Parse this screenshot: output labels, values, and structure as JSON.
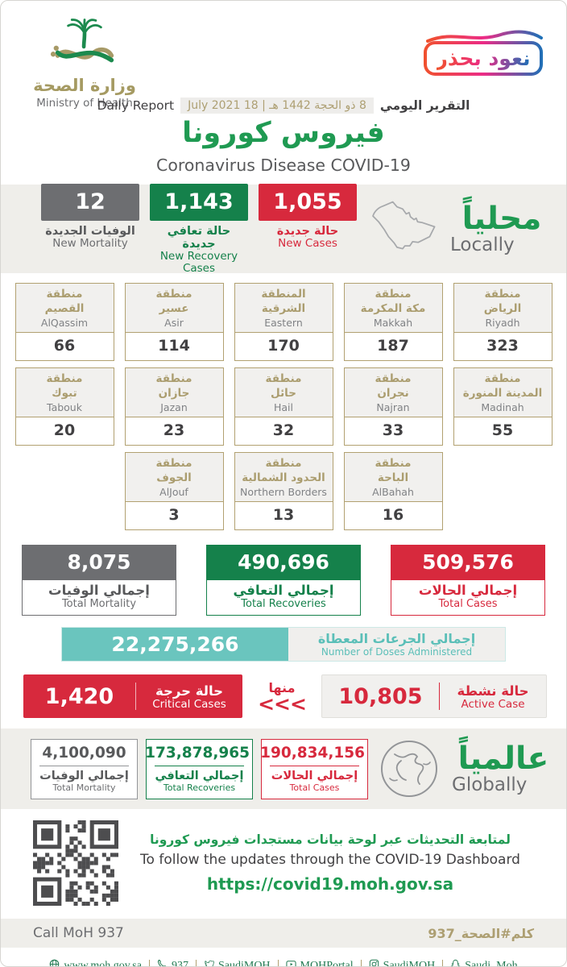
{
  "header": {
    "logo_ar": "وزارة الصحة",
    "logo_en": "Ministry of Health",
    "badge": "نعود بحذر",
    "report_en": "Daily Report",
    "date": "8 ذو الحجة 1442 هـ | 18 July 2021",
    "report_ar": "التقرير اليومي",
    "title_ar": "فيروس كورونا",
    "title_en": "Coronavirus Disease COVID-19"
  },
  "locally": {
    "heading_ar": "محلياً",
    "heading_en": "Locally",
    "stats": [
      {
        "value": "1,055",
        "ar": "حالة جديدة",
        "en": "New Cases",
        "theme": "red"
      },
      {
        "value": "1,143",
        "ar": "حالة تعافي جديدة",
        "en": "New Recovery Cases",
        "theme": "green"
      },
      {
        "value": "12",
        "ar": "الوفيات الجديدة",
        "en": "New Mortality",
        "theme": "gray"
      }
    ]
  },
  "regions": {
    "rows": [
      [
        {
          "ar1": "منطقة",
          "ar2": "الرياض",
          "en": "Riyadh",
          "value": "323"
        },
        {
          "ar1": "منطقة",
          "ar2": "مكة المكرمة",
          "en": "Makkah",
          "value": "187"
        },
        {
          "ar1": "المنطقة",
          "ar2": "الشرقية",
          "en": "Eastern",
          "value": "170"
        },
        {
          "ar1": "منطقة",
          "ar2": "عسير",
          "en": "Asir",
          "value": "114"
        },
        {
          "ar1": "منطقة",
          "ar2": "القصيم",
          "en": "AlQassim",
          "value": "66"
        }
      ],
      [
        {
          "ar1": "منطقة",
          "ar2": "المدينة المنورة",
          "en": "Madinah",
          "value": "55"
        },
        {
          "ar1": "منطقة",
          "ar2": "نجران",
          "en": "Najran",
          "value": "33"
        },
        {
          "ar1": "منطقة",
          "ar2": "حائل",
          "en": "Hail",
          "value": "32"
        },
        {
          "ar1": "منطقة",
          "ar2": "جازان",
          "en": "Jazan",
          "value": "23"
        },
        {
          "ar1": "منطقة",
          "ar2": "تبوك",
          "en": "Tabouk",
          "value": "20"
        }
      ],
      [
        {
          "ar1": "منطقة",
          "ar2": "الباحة",
          "en": "AlBahah",
          "value": "16"
        },
        {
          "ar1": "منطقة",
          "ar2": "الحدود الشمالية",
          "en": "Northern Borders",
          "value": "13"
        },
        {
          "ar1": "منطقة",
          "ar2": "الجوف",
          "en": "AlJouf",
          "value": "3"
        }
      ]
    ]
  },
  "totals": [
    {
      "value": "509,576",
      "ar": "إجمالي الحالات",
      "en": "Total Cases",
      "theme": "red"
    },
    {
      "value": "490,696",
      "ar": "إجمالي التعافي",
      "en": "Total Recoveries",
      "theme": "green"
    },
    {
      "value": "8,075",
      "ar": "إجمالي الوفيات",
      "en": "Total Mortality",
      "theme": "gray"
    }
  ],
  "doses": {
    "value": "22,275,266",
    "ar": "إجمالي الجرعات المعطاة",
    "en": "Number of Doses Administered"
  },
  "critical": {
    "value": "1,420",
    "ar": "حالة حرجة",
    "en": "Critical Cases"
  },
  "of_which": {
    "ar": "منها",
    "chevrons": "<<<"
  },
  "active": {
    "value": "10,805",
    "ar": "حالة نشطة",
    "en": "Active Case"
  },
  "globally": {
    "heading_ar": "عالمياً",
    "heading_en": "Globally",
    "stats": [
      {
        "value": "190,834,156",
        "ar": "إجمالي الحالات",
        "en": "Total Cases",
        "theme": "red"
      },
      {
        "value": "173,878,965",
        "ar": "إجمالي التعافي",
        "en": "Total Recoveries",
        "theme": "green"
      },
      {
        "value": "4,100,090",
        "ar": "إجمالي الوفيات",
        "en": "Total Mortality",
        "theme": "gray"
      }
    ]
  },
  "dashboard": {
    "line_ar": "لمتابعة التحديثات عبر لوحة بيانات مستجدات فيروس كورونا",
    "line_en": "To follow the updates through the COVID-19 Dashboard",
    "url": "https://covid19.moh.gov.sa"
  },
  "call_strip": {
    "en": "Call MoH 937",
    "ar": "كلم#الصحة_937"
  },
  "footer": {
    "items": [
      {
        "icon": "globe",
        "label": "www.moh.gov.sa"
      },
      {
        "icon": "phone",
        "label": "937"
      },
      {
        "icon": "twitter",
        "label": "SaudiMOH"
      },
      {
        "icon": "youtube",
        "label": "MOHPortal"
      },
      {
        "icon": "instagram",
        "label": "SaudiMOH"
      },
      {
        "icon": "snapchat",
        "label": "Saudi_Moh"
      }
    ]
  },
  "colors": {
    "green_heading": "#1f9a52",
    "green_box": "#15814b",
    "red": "#d7293d",
    "gray": "#6d6e71",
    "tan": "#b2a171",
    "teal": "#6ac5be",
    "band": "#efeeea"
  }
}
